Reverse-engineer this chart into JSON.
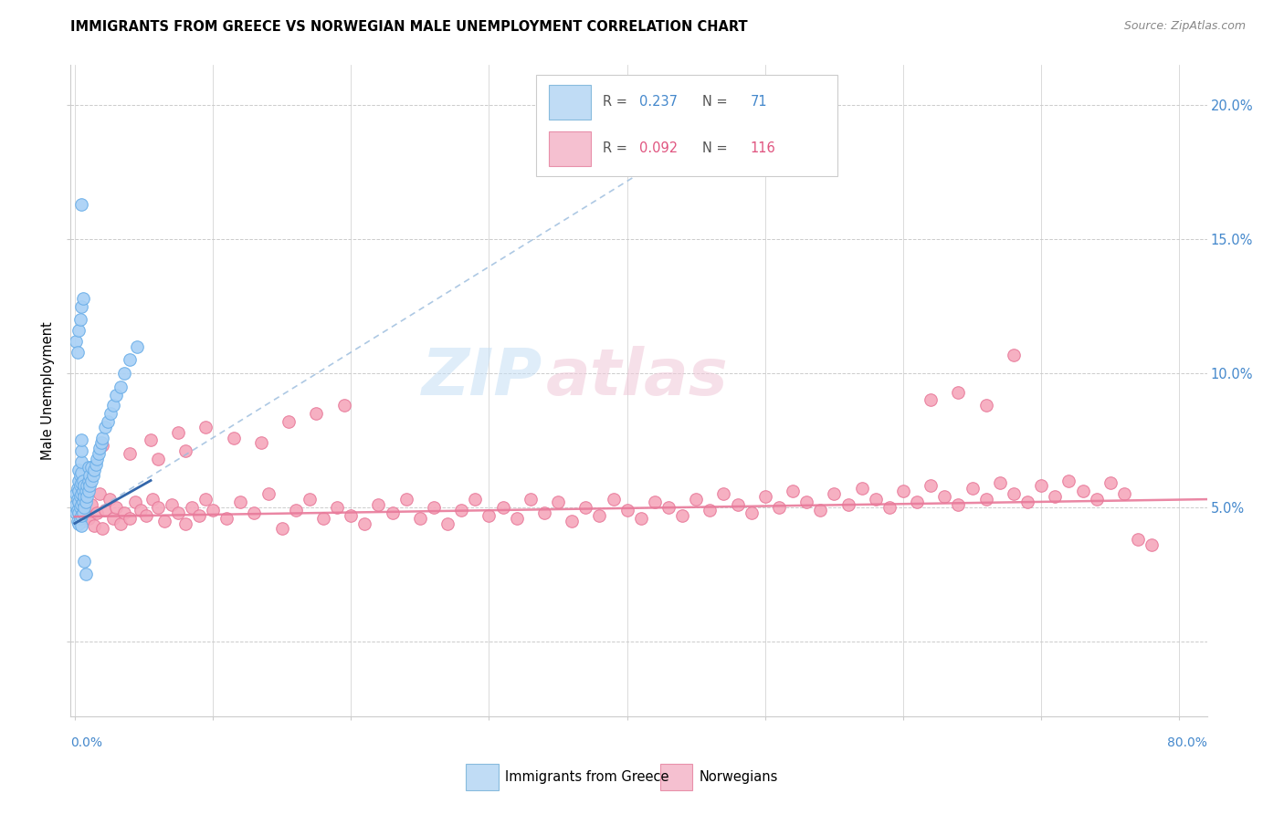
{
  "title": "IMMIGRANTS FROM GREECE VS NORWEGIAN MALE UNEMPLOYMENT CORRELATION CHART",
  "source": "Source: ZipAtlas.com",
  "ylabel": "Male Unemployment",
  "right_yticklabels": [
    "",
    "5.0%",
    "10.0%",
    "15.0%",
    "20.0%"
  ],
  "right_yticks": [
    0.0,
    0.05,
    0.1,
    0.15,
    0.2
  ],
  "xlim": [
    -0.003,
    0.82
  ],
  "ylim": [
    -0.028,
    0.215
  ],
  "legend_blue_R": "0.237",
  "legend_blue_N": "71",
  "legend_pink_R": "0.092",
  "legend_pink_N": "116",
  "blue_color": "#a8d0f5",
  "blue_edge_color": "#6aaee8",
  "pink_color": "#f5a8bc",
  "pink_edge_color": "#e87a9a",
  "blue_trend_color": "#5599cc",
  "pink_trend_color": "#e87a9a",
  "watermark_color": "#c8dff0",
  "watermark_pink": "#f5c0d0",
  "right_label_color": "#4488cc",
  "xtick_color": "#4488cc",
  "blue_x": [
    0.001,
    0.001,
    0.001,
    0.002,
    0.002,
    0.002,
    0.002,
    0.003,
    0.003,
    0.003,
    0.003,
    0.003,
    0.003,
    0.004,
    0.004,
    0.004,
    0.004,
    0.004,
    0.005,
    0.005,
    0.005,
    0.005,
    0.005,
    0.005,
    0.005,
    0.005,
    0.005,
    0.006,
    0.006,
    0.006,
    0.006,
    0.007,
    0.007,
    0.007,
    0.008,
    0.008,
    0.009,
    0.009,
    0.01,
    0.01,
    0.01,
    0.011,
    0.011,
    0.012,
    0.012,
    0.013,
    0.014,
    0.015,
    0.016,
    0.017,
    0.018,
    0.019,
    0.02,
    0.022,
    0.024,
    0.026,
    0.028,
    0.03,
    0.033,
    0.036,
    0.04,
    0.045,
    0.001,
    0.002,
    0.003,
    0.004,
    0.005,
    0.006,
    0.007,
    0.008,
    0.005
  ],
  "blue_y": [
    0.048,
    0.051,
    0.055,
    0.045,
    0.049,
    0.053,
    0.057,
    0.044,
    0.048,
    0.052,
    0.056,
    0.06,
    0.064,
    0.046,
    0.05,
    0.054,
    0.058,
    0.062,
    0.043,
    0.047,
    0.051,
    0.055,
    0.059,
    0.063,
    0.067,
    0.071,
    0.075,
    0.048,
    0.052,
    0.056,
    0.06,
    0.05,
    0.054,
    0.058,
    0.052,
    0.056,
    0.054,
    0.058,
    0.056,
    0.06,
    0.065,
    0.058,
    0.062,
    0.06,
    0.065,
    0.062,
    0.064,
    0.066,
    0.068,
    0.07,
    0.072,
    0.074,
    0.076,
    0.08,
    0.082,
    0.085,
    0.088,
    0.092,
    0.095,
    0.1,
    0.105,
    0.11,
    0.112,
    0.108,
    0.116,
    0.12,
    0.125,
    0.128,
    0.03,
    0.025,
    0.163
  ],
  "pink_x": [
    0.003,
    0.004,
    0.005,
    0.006,
    0.007,
    0.008,
    0.01,
    0.012,
    0.014,
    0.016,
    0.018,
    0.02,
    0.022,
    0.025,
    0.028,
    0.03,
    0.033,
    0.036,
    0.04,
    0.044,
    0.048,
    0.052,
    0.056,
    0.06,
    0.065,
    0.07,
    0.075,
    0.08,
    0.085,
    0.09,
    0.095,
    0.1,
    0.11,
    0.12,
    0.13,
    0.14,
    0.15,
    0.16,
    0.17,
    0.18,
    0.19,
    0.2,
    0.21,
    0.22,
    0.23,
    0.24,
    0.25,
    0.26,
    0.27,
    0.28,
    0.29,
    0.3,
    0.31,
    0.32,
    0.33,
    0.34,
    0.35,
    0.36,
    0.37,
    0.38,
    0.39,
    0.4,
    0.41,
    0.42,
    0.43,
    0.44,
    0.45,
    0.46,
    0.47,
    0.48,
    0.49,
    0.5,
    0.51,
    0.52,
    0.53,
    0.54,
    0.55,
    0.56,
    0.57,
    0.58,
    0.59,
    0.6,
    0.61,
    0.62,
    0.63,
    0.64,
    0.65,
    0.66,
    0.67,
    0.68,
    0.69,
    0.7,
    0.71,
    0.72,
    0.73,
    0.74,
    0.75,
    0.76,
    0.77,
    0.78,
    0.055,
    0.075,
    0.095,
    0.115,
    0.135,
    0.155,
    0.175,
    0.195,
    0.02,
    0.04,
    0.06,
    0.08,
    0.62,
    0.64,
    0.66,
    0.68
  ],
  "pink_y": [
    0.052,
    0.048,
    0.053,
    0.045,
    0.05,
    0.047,
    0.046,
    0.051,
    0.043,
    0.048,
    0.055,
    0.042,
    0.049,
    0.053,
    0.046,
    0.05,
    0.044,
    0.048,
    0.046,
    0.052,
    0.049,
    0.047,
    0.053,
    0.05,
    0.045,
    0.051,
    0.048,
    0.044,
    0.05,
    0.047,
    0.053,
    0.049,
    0.046,
    0.052,
    0.048,
    0.055,
    0.042,
    0.049,
    0.053,
    0.046,
    0.05,
    0.047,
    0.044,
    0.051,
    0.048,
    0.053,
    0.046,
    0.05,
    0.044,
    0.049,
    0.053,
    0.047,
    0.05,
    0.046,
    0.053,
    0.048,
    0.052,
    0.045,
    0.05,
    0.047,
    0.053,
    0.049,
    0.046,
    0.052,
    0.05,
    0.047,
    0.053,
    0.049,
    0.055,
    0.051,
    0.048,
    0.054,
    0.05,
    0.056,
    0.052,
    0.049,
    0.055,
    0.051,
    0.057,
    0.053,
    0.05,
    0.056,
    0.052,
    0.058,
    0.054,
    0.051,
    0.057,
    0.053,
    0.059,
    0.055,
    0.052,
    0.058,
    0.054,
    0.06,
    0.056,
    0.053,
    0.059,
    0.055,
    0.038,
    0.036,
    0.075,
    0.078,
    0.08,
    0.076,
    0.074,
    0.082,
    0.085,
    0.088,
    0.073,
    0.07,
    0.068,
    0.071,
    0.09,
    0.093,
    0.088,
    0.107
  ],
  "blue_trend_x": [
    0.0,
    0.52
  ],
  "blue_trend_y": [
    0.044,
    0.21
  ],
  "pink_trend_x": [
    0.0,
    0.82
  ],
  "pink_trend_y": [
    0.0465,
    0.053
  ]
}
